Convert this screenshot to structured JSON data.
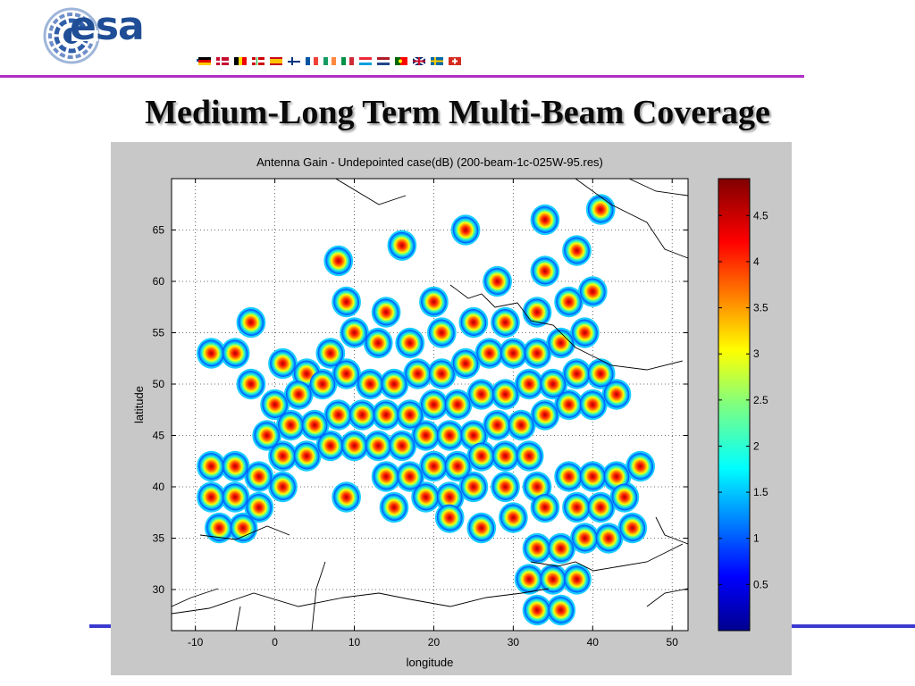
{
  "logo": {
    "text": "esa"
  },
  "slide": {
    "title": "Medium-Long Term Multi-Beam Coverage"
  },
  "colors": {
    "accent_rule": "#b12fc6",
    "bottom_rule": "#3a3ad0",
    "figure_bg": "#c8c8c8",
    "logo_blue": "#1f4e96"
  },
  "chart_data": {
    "type": "heatmap",
    "title": "Antenna Gain - Undepointed case(dB) (200-beam-1c-025W-95.res)",
    "xlabel": "longitude",
    "ylabel": "latitude",
    "xlim": [
      -13,
      52
    ],
    "ylim": [
      26,
      70
    ],
    "x_ticks": [
      -10,
      0,
      10,
      20,
      30,
      40,
      50
    ],
    "y_ticks": [
      30,
      35,
      40,
      45,
      50,
      55,
      60,
      65
    ],
    "grid": true,
    "colorbar": {
      "range": [
        0,
        4.9
      ],
      "ticks": [
        0.5,
        1,
        1.5,
        2,
        2.5,
        3,
        3.5,
        4,
        4.5
      ],
      "colormap": "jet"
    },
    "beams": [
      [
        8,
        62
      ],
      [
        16,
        63.5
      ],
      [
        24,
        65
      ],
      [
        34,
        66
      ],
      [
        41,
        67
      ],
      [
        9,
        58
      ],
      [
        14,
        57
      ],
      [
        20,
        58
      ],
      [
        28,
        60
      ],
      [
        34,
        61
      ],
      [
        38,
        63
      ],
      [
        -8,
        53
      ],
      [
        -5,
        53
      ],
      [
        -3,
        56
      ],
      [
        1,
        52
      ],
      [
        4,
        51
      ],
      [
        7,
        53
      ],
      [
        10,
        55
      ],
      [
        13,
        54
      ],
      [
        17,
        54
      ],
      [
        21,
        55
      ],
      [
        25,
        56
      ],
      [
        29,
        56
      ],
      [
        33,
        57
      ],
      [
        37,
        58
      ],
      [
        40,
        59
      ],
      [
        -3,
        50
      ],
      [
        0,
        48
      ],
      [
        3,
        49
      ],
      [
        6,
        50
      ],
      [
        9,
        51
      ],
      [
        12,
        50
      ],
      [
        15,
        50
      ],
      [
        18,
        51
      ],
      [
        21,
        51
      ],
      [
        24,
        52
      ],
      [
        27,
        53
      ],
      [
        30,
        53
      ],
      [
        33,
        53
      ],
      [
        36,
        54
      ],
      [
        39,
        55
      ],
      [
        -1,
        45
      ],
      [
        2,
        46
      ],
      [
        5,
        46
      ],
      [
        8,
        47
      ],
      [
        11,
        47
      ],
      [
        14,
        47
      ],
      [
        17,
        47
      ],
      [
        20,
        48
      ],
      [
        23,
        48
      ],
      [
        26,
        49
      ],
      [
        29,
        49
      ],
      [
        32,
        50
      ],
      [
        35,
        50
      ],
      [
        38,
        51
      ],
      [
        41,
        51
      ],
      [
        1,
        43
      ],
      [
        4,
        43
      ],
      [
        7,
        44
      ],
      [
        10,
        44
      ],
      [
        13,
        44
      ],
      [
        16,
        44
      ],
      [
        19,
        45
      ],
      [
        22,
        45
      ],
      [
        25,
        45
      ],
      [
        28,
        46
      ],
      [
        31,
        46
      ],
      [
        34,
        47
      ],
      [
        37,
        48
      ],
      [
        40,
        48
      ],
      [
        43,
        49
      ],
      [
        -8,
        42
      ],
      [
        -5,
        42
      ],
      [
        -2,
        41
      ],
      [
        1,
        40
      ],
      [
        14,
        41
      ],
      [
        17,
        41
      ],
      [
        20,
        42
      ],
      [
        23,
        42
      ],
      [
        26,
        43
      ],
      [
        29,
        43
      ],
      [
        32,
        43
      ],
      [
        -8,
        39
      ],
      [
        -5,
        39
      ],
      [
        -2,
        38
      ],
      [
        9,
        39
      ],
      [
        15,
        38
      ],
      [
        19,
        39
      ],
      [
        22,
        39
      ],
      [
        25,
        40
      ],
      [
        29,
        40
      ],
      [
        33,
        40
      ],
      [
        37,
        41
      ],
      [
        40,
        41
      ],
      [
        43,
        41
      ],
      [
        46,
        42
      ],
      [
        -7,
        36
      ],
      [
        -4,
        36
      ],
      [
        22,
        37
      ],
      [
        26,
        36
      ],
      [
        30,
        37
      ],
      [
        34,
        38
      ],
      [
        38,
        38
      ],
      [
        41,
        38
      ],
      [
        44,
        39
      ],
      [
        33,
        34
      ],
      [
        36,
        34
      ],
      [
        39,
        35
      ],
      [
        42,
        35
      ],
      [
        45,
        36
      ],
      [
        32,
        31
      ],
      [
        35,
        31
      ],
      [
        38,
        31
      ],
      [
        33,
        28
      ],
      [
        36,
        28
      ]
    ],
    "coastlines_note": ""
  }
}
